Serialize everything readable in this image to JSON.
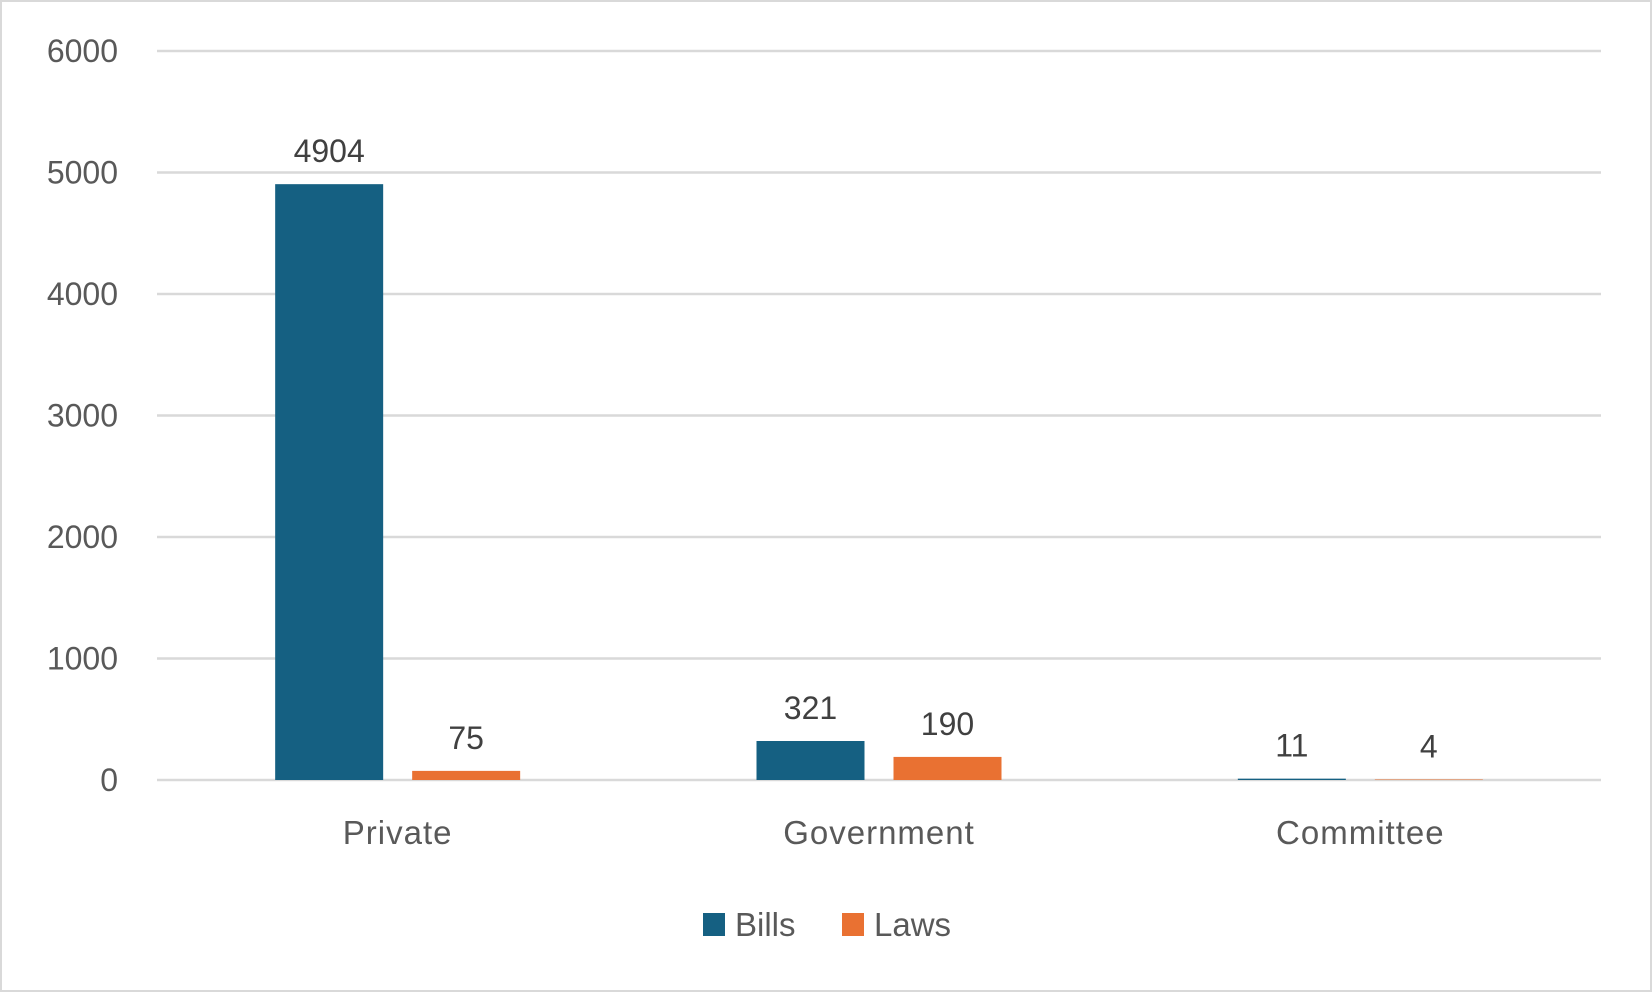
{
  "chart_data": {
    "type": "bar",
    "title": "",
    "xlabel": "",
    "ylabel": "",
    "categories": [
      "Private",
      "Government",
      "Committee"
    ],
    "series": [
      {
        "name": "Bills",
        "color": "#156082",
        "values": [
          4904,
          321,
          11
        ]
      },
      {
        "name": "Laws",
        "color": "#E97132",
        "values": [
          75,
          190,
          4
        ]
      }
    ],
    "ylim": [
      0,
      6000
    ],
    "yticks": [
      0,
      1000,
      2000,
      3000,
      4000,
      5000,
      6000
    ],
    "grid": true,
    "legend": "bottom-center",
    "data_labels": true
  }
}
